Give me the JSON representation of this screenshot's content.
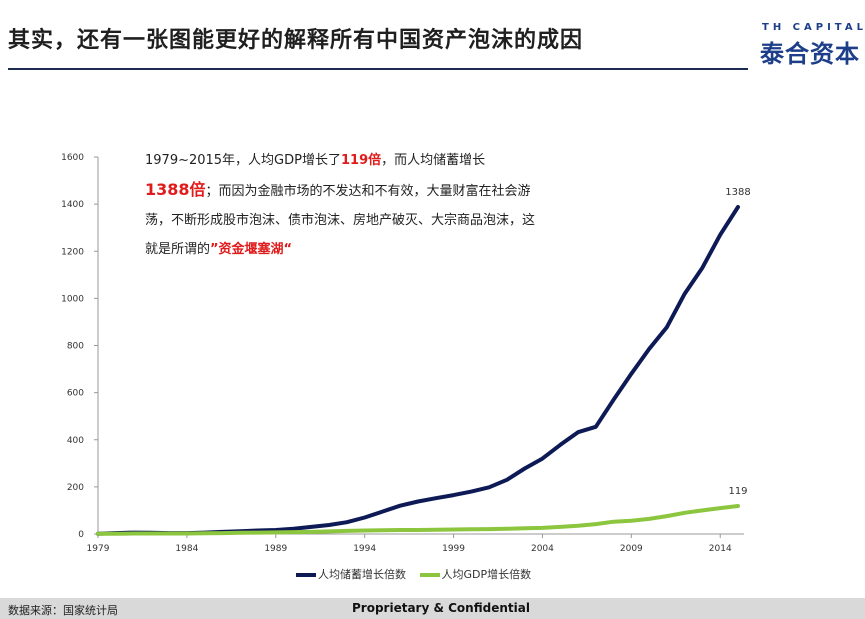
{
  "header": {
    "title": "其实，还有一张图能更好的解释所有中国资产泡沫的成因",
    "logo_small": "TH CAPITAL",
    "logo_main": "泰合资本"
  },
  "callout": {
    "p1": "1979~2015年，人均GDP增长了",
    "r1": "119倍",
    "p2": "，而人均储蓄增长",
    "r2": "1388倍",
    "p3": "；而因为金融市场的不发达和不有效，大量财富在社会游荡，不断形成股市泡沫、债市泡沫、房地产破灭、大宗商品泡沫，这就是所谓的",
    "r3": "”资金堰塞湖“"
  },
  "footer": {
    "source": "数据来源：国家统计局",
    "confidential": "Proprietary & Confidential"
  },
  "colors": {
    "savings": "#0d1a56",
    "gdp": "#8cc63f",
    "title_rule": "#1d2a52",
    "accent_red": "#e01b1b",
    "logo": "#1d3f8a"
  },
  "chart_data": {
    "type": "line",
    "ylim": [
      0,
      1600
    ],
    "yticks": [
      0,
      200,
      400,
      600,
      800,
      1000,
      1200,
      1400,
      1600
    ],
    "xlim": [
      1979,
      2015
    ],
    "xticks": [
      1979,
      1984,
      1989,
      1994,
      1999,
      2004,
      2009,
      2014
    ],
    "x": [
      1979,
      1980,
      1981,
      1982,
      1983,
      1984,
      1985,
      1986,
      1987,
      1988,
      1989,
      1990,
      1991,
      1992,
      1993,
      1994,
      1995,
      1996,
      1997,
      1998,
      1999,
      2000,
      2001,
      2002,
      2003,
      2004,
      2005,
      2006,
      2007,
      2008,
      2009,
      2010,
      2011,
      2012,
      2013,
      2014,
      2015
    ],
    "series": [
      {
        "name": "人均储蓄增长倍数",
        "color": "#0d1a56",
        "end_label": "1388",
        "values": [
          1,
          4,
          6,
          5,
          4,
          4,
          6,
          9,
          12,
          15,
          17,
          22,
          30,
          38,
          50,
          70,
          95,
          120,
          138,
          152,
          165,
          180,
          198,
          230,
          278,
          320,
          378,
          432,
          455,
          570,
          680,
          785,
          878,
          1020,
          1130,
          1270,
          1388
        ]
      },
      {
        "name": "人均GDP增长倍数",
        "color": "#8cc63f",
        "end_label": "119",
        "values": [
          1,
          1,
          2,
          2,
          2,
          2,
          3,
          4,
          5,
          6,
          7,
          8,
          9,
          11,
          13,
          15,
          16,
          17,
          17,
          18,
          19,
          20,
          21,
          22,
          24,
          26,
          30,
          35,
          42,
          52,
          56,
          64,
          76,
          90,
          100,
          110,
          119
        ]
      }
    ]
  }
}
